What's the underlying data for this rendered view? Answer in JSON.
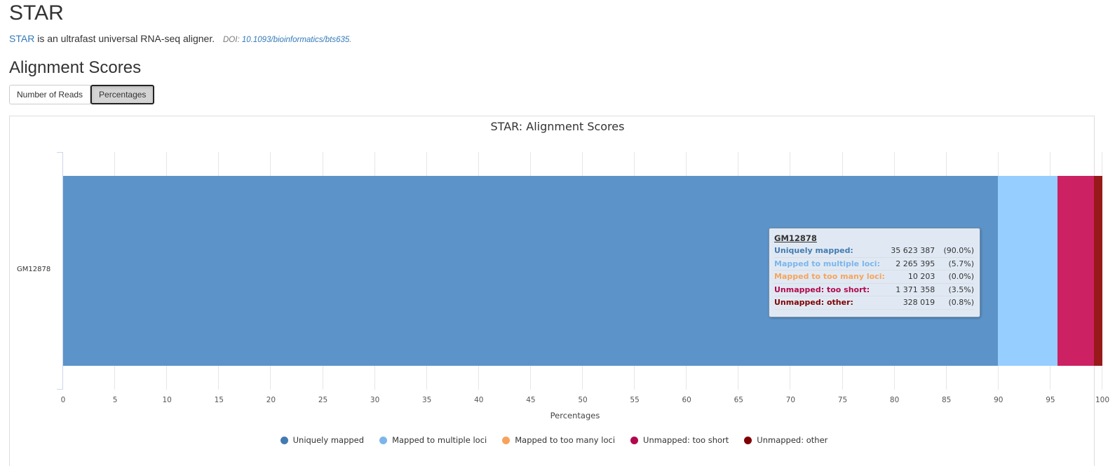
{
  "header": {
    "title": "STAR",
    "intro_link": "STAR",
    "intro_text": " is an ultrafast universal RNA-seq aligner.",
    "doi_prefix": "DOI: ",
    "doi_link": "10.1093/bioinformatics/bts635",
    "doi_suffix": "."
  },
  "section": {
    "title": "Alignment Scores",
    "buttons": [
      {
        "label": "Number of Reads",
        "active": false
      },
      {
        "label": "Percentages",
        "active": true
      }
    ]
  },
  "colors": {
    "uniquely_mapped": "#5c94c9",
    "multiple_loci": "#96ceff",
    "too_many_loci": "#f7a35c",
    "too_short": "#cc2163",
    "other": "#981919",
    "legend_uniquely_mapped": "#437bb1",
    "legend_multiple_loci": "#7cb5ec",
    "legend_too_many_loci": "#f7a35c",
    "legend_too_short": "#b1084c",
    "legend_other": "#7f0000"
  },
  "chart_data": {
    "type": "bar",
    "orientation": "horizontal",
    "stacked": true,
    "title": "STAR: Alignment Scores",
    "xlabel": "Percentages",
    "ylabel": "",
    "xlim": [
      0,
      100
    ],
    "x_ticks": [
      "0",
      "5",
      "10",
      "15",
      "20",
      "25",
      "30",
      "35",
      "40",
      "45",
      "50",
      "55",
      "60",
      "65",
      "70",
      "75",
      "80",
      "85",
      "90",
      "95",
      "100"
    ],
    "categories": [
      "GM12878"
    ],
    "grid": true,
    "legend_position": "bottom",
    "series": [
      {
        "name": "Uniquely mapped",
        "values": [
          89.96
        ],
        "reads": [
          35623387
        ]
      },
      {
        "name": "Mapped to multiple loci",
        "values": [
          5.72
        ],
        "reads": [
          2265395
        ]
      },
      {
        "name": "Mapped to too many loci",
        "values": [
          0.03
        ],
        "reads": [
          10203
        ]
      },
      {
        "name": "Unmapped: too short",
        "values": [
          3.46
        ],
        "reads": [
          1371358
        ]
      },
      {
        "name": "Unmapped: other",
        "values": [
          0.83
        ],
        "reads": [
          328019
        ]
      }
    ]
  },
  "tooltip": {
    "sample": "GM12878",
    "rows": [
      {
        "label": "Uniquely mapped:",
        "value": "35 623 387",
        "pct": "(90.0%)",
        "color": "#437bb1"
      },
      {
        "label": "Mapped to multiple loci:",
        "value": "2 265 395",
        "pct": "(5.7%)",
        "color": "#7cb5ec"
      },
      {
        "label": "Mapped to too many loci:",
        "value": "10 203",
        "pct": "(0.0%)",
        "color": "#f7a35c"
      },
      {
        "label": "Unmapped: too short:",
        "value": "1 371 358",
        "pct": "(3.5%)",
        "color": "#b1084c"
      },
      {
        "label": "Unmapped: other:",
        "value": "328 019",
        "pct": "(0.8%)",
        "color": "#7f0000"
      }
    ]
  },
  "legend": [
    {
      "label": "Uniquely mapped"
    },
    {
      "label": "Mapped to multiple loci"
    },
    {
      "label": "Mapped to too many loci"
    },
    {
      "label": "Unmapped: too short"
    },
    {
      "label": "Unmapped: other"
    }
  ]
}
